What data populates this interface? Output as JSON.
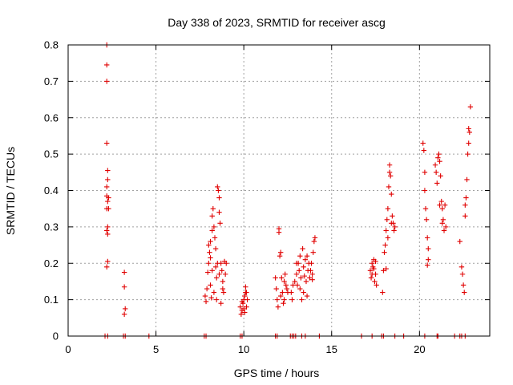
{
  "chart_data": {
    "type": "scatter",
    "title": "Day 338 of 2023, SRMTID for receiver ascg",
    "xlabel": "GPS time / hours",
    "ylabel": "SRMTID / TECUs",
    "xlim": [
      0,
      24
    ],
    "ylim": [
      0,
      0.8
    ],
    "xticks": [
      0,
      5,
      10,
      15,
      20
    ],
    "yticks": [
      0,
      0.1,
      0.2,
      0.3,
      0.4,
      0.5,
      0.6,
      0.7,
      0.8
    ],
    "xtick_labels": [
      "0",
      "5",
      "10",
      "15",
      "20"
    ],
    "ytick_labels": [
      "0",
      "0.1",
      "0.2",
      "0.3",
      "0.4",
      "0.5",
      "0.6",
      "0.7",
      "0.8"
    ],
    "grid": true,
    "marker": "+",
    "series": [
      {
        "name": "SRMTID",
        "color": "#e00000",
        "points": [
          [
            2.2,
            0.8
          ],
          [
            2.2,
            0.745
          ],
          [
            2.2,
            0.7
          ],
          [
            2.2,
            0.53
          ],
          [
            2.25,
            0.455
          ],
          [
            2.25,
            0.43
          ],
          [
            2.2,
            0.41
          ],
          [
            2.2,
            0.385
          ],
          [
            2.3,
            0.38
          ],
          [
            2.25,
            0.37
          ],
          [
            2.3,
            0.35
          ],
          [
            2.2,
            0.35
          ],
          [
            2.25,
            0.3
          ],
          [
            2.2,
            0.29
          ],
          [
            2.25,
            0.28
          ],
          [
            2.25,
            0.205
          ],
          [
            2.2,
            0.19
          ],
          [
            3.2,
            0.175
          ],
          [
            3.2,
            0.135
          ],
          [
            3.25,
            0.075
          ],
          [
            3.2,
            0.06
          ],
          [
            7.8,
            0.11
          ],
          [
            7.85,
            0.095
          ],
          [
            7.9,
            0.13
          ],
          [
            7.95,
            0.175
          ],
          [
            8.0,
            0.2
          ],
          [
            8.0,
            0.25
          ],
          [
            8.05,
            0.23
          ],
          [
            8.1,
            0.215
          ],
          [
            8.1,
            0.14
          ],
          [
            8.15,
            0.105
          ],
          [
            8.2,
            0.29
          ],
          [
            8.2,
            0.33
          ],
          [
            8.25,
            0.35
          ],
          [
            8.3,
            0.3
          ],
          [
            8.35,
            0.27
          ],
          [
            8.4,
            0.24
          ],
          [
            8.4,
            0.19
          ],
          [
            8.45,
            0.16
          ],
          [
            8.5,
            0.2
          ],
          [
            8.5,
            0.41
          ],
          [
            8.55,
            0.4
          ],
          [
            8.6,
            0.38
          ],
          [
            8.6,
            0.34
          ],
          [
            8.65,
            0.31
          ],
          [
            8.7,
            0.2
          ],
          [
            8.75,
            0.18
          ],
          [
            8.8,
            0.15
          ],
          [
            8.8,
            0.13
          ],
          [
            8.85,
            0.12
          ],
          [
            8.9,
            0.205
          ],
          [
            8.95,
            0.17
          ],
          [
            9.0,
            0.2
          ],
          [
            8.1,
            0.26
          ],
          [
            8.2,
            0.18
          ],
          [
            8.3,
            0.12
          ],
          [
            8.45,
            0.1
          ],
          [
            8.6,
            0.17
          ],
          [
            8.7,
            0.09
          ],
          [
            9.8,
            0.08
          ],
          [
            9.85,
            0.06
          ],
          [
            9.9,
            0.07
          ],
          [
            9.95,
            0.09
          ],
          [
            10.0,
            0.1
          ],
          [
            10.05,
            0.11
          ],
          [
            10.1,
            0.12
          ],
          [
            10.1,
            0.135
          ],
          [
            10.15,
            0.08
          ],
          [
            10.2,
            0.1
          ],
          [
            10.0,
            0.075
          ],
          [
            9.9,
            0.095
          ],
          [
            10.05,
            0.065
          ],
          [
            10.15,
            0.12
          ],
          [
            11.8,
            0.16
          ],
          [
            11.85,
            0.13
          ],
          [
            11.9,
            0.1
          ],
          [
            11.95,
            0.08
          ],
          [
            12.0,
            0.285
          ],
          [
            12.0,
            0.295
          ],
          [
            12.05,
            0.22
          ],
          [
            12.1,
            0.23
          ],
          [
            12.15,
            0.16
          ],
          [
            12.2,
            0.12
          ],
          [
            12.25,
            0.09
          ],
          [
            12.3,
            0.15
          ],
          [
            12.35,
            0.17
          ],
          [
            12.4,
            0.14
          ],
          [
            12.45,
            0.13
          ],
          [
            12.5,
            0.12
          ],
          [
            12.1,
            0.11
          ],
          [
            12.3,
            0.1
          ],
          [
            12.7,
            0.12
          ],
          [
            12.75,
            0.1
          ],
          [
            12.8,
            0.14
          ],
          [
            12.9,
            0.15
          ],
          [
            13.0,
            0.17
          ],
          [
            13.05,
            0.14
          ],
          [
            13.1,
            0.2
          ],
          [
            13.15,
            0.18
          ],
          [
            13.2,
            0.22
          ],
          [
            13.25,
            0.16
          ],
          [
            13.3,
            0.1
          ],
          [
            13.35,
            0.24
          ],
          [
            13.4,
            0.19
          ],
          [
            13.5,
            0.21
          ],
          [
            13.55,
            0.15
          ],
          [
            13.6,
            0.22
          ],
          [
            13.7,
            0.2
          ],
          [
            13.75,
            0.16
          ],
          [
            13.8,
            0.18
          ],
          [
            13.9,
            0.17
          ],
          [
            13.95,
            0.23
          ],
          [
            14.0,
            0.26
          ],
          [
            14.05,
            0.27
          ],
          [
            13.4,
            0.12
          ],
          [
            13.6,
            0.11
          ],
          [
            13.85,
            0.2
          ],
          [
            13.0,
            0.2
          ],
          [
            13.2,
            0.13
          ],
          [
            13.45,
            0.165
          ],
          [
            13.65,
            0.18
          ],
          [
            13.9,
            0.155
          ],
          [
            17.2,
            0.18
          ],
          [
            17.25,
            0.16
          ],
          [
            17.3,
            0.2
          ],
          [
            17.35,
            0.19
          ],
          [
            17.4,
            0.21
          ],
          [
            17.45,
            0.15
          ],
          [
            17.5,
            0.17
          ],
          [
            17.55,
            0.14
          ],
          [
            17.3,
            0.17
          ],
          [
            17.4,
            0.185
          ],
          [
            17.5,
            0.205
          ],
          [
            17.9,
            0.12
          ],
          [
            17.95,
            0.18
          ],
          [
            18.0,
            0.23
          ],
          [
            18.05,
            0.25
          ],
          [
            18.1,
            0.29
          ],
          [
            18.15,
            0.32
          ],
          [
            18.2,
            0.35
          ],
          [
            18.25,
            0.41
          ],
          [
            18.3,
            0.45
          ],
          [
            18.3,
            0.47
          ],
          [
            18.35,
            0.44
          ],
          [
            18.4,
            0.39
          ],
          [
            18.45,
            0.33
          ],
          [
            18.5,
            0.31
          ],
          [
            18.55,
            0.29
          ],
          [
            18.6,
            0.3
          ],
          [
            18.2,
            0.27
          ],
          [
            18.4,
            0.31
          ],
          [
            18.1,
            0.185
          ],
          [
            20.2,
            0.53
          ],
          [
            20.25,
            0.51
          ],
          [
            20.3,
            0.45
          ],
          [
            20.3,
            0.4
          ],
          [
            20.35,
            0.35
          ],
          [
            20.4,
            0.32
          ],
          [
            20.45,
            0.27
          ],
          [
            20.5,
            0.24
          ],
          [
            20.5,
            0.21
          ],
          [
            20.45,
            0.195
          ],
          [
            20.9,
            0.47
          ],
          [
            20.95,
            0.45
          ],
          [
            21.0,
            0.42
          ],
          [
            21.05,
            0.49
          ],
          [
            21.1,
            0.5
          ],
          [
            21.15,
            0.48
          ],
          [
            21.2,
            0.44
          ],
          [
            21.25,
            0.37
          ],
          [
            21.3,
            0.35
          ],
          [
            21.35,
            0.32
          ],
          [
            21.4,
            0.29
          ],
          [
            21.45,
            0.36
          ],
          [
            21.5,
            0.3
          ],
          [
            21.15,
            0.36
          ],
          [
            21.3,
            0.31
          ],
          [
            22.3,
            0.26
          ],
          [
            22.4,
            0.19
          ],
          [
            22.45,
            0.17
          ],
          [
            22.5,
            0.14
          ],
          [
            22.55,
            0.12
          ],
          [
            22.6,
            0.33
          ],
          [
            22.65,
            0.38
          ],
          [
            22.7,
            0.43
          ],
          [
            22.75,
            0.5
          ],
          [
            22.8,
            0.53
          ],
          [
            22.85,
            0.56
          ],
          [
            22.8,
            0.57
          ],
          [
            22.9,
            0.63
          ],
          [
            22.6,
            0.36
          ]
        ]
      }
    ],
    "zero_markers": {
      "color": "#e00000",
      "x": [
        2.1,
        2.25,
        3.15,
        3.25,
        4.6,
        7.75,
        7.85,
        9.8,
        9.9,
        11.8,
        11.9,
        12.65,
        12.75,
        12.85,
        12.95,
        13.3,
        13.5,
        14.3,
        16.7,
        17.3,
        17.85,
        17.95,
        18.6,
        19.1,
        20.3,
        21.0,
        21.05,
        22.0,
        22.3,
        22.4,
        22.6
      ]
    }
  }
}
